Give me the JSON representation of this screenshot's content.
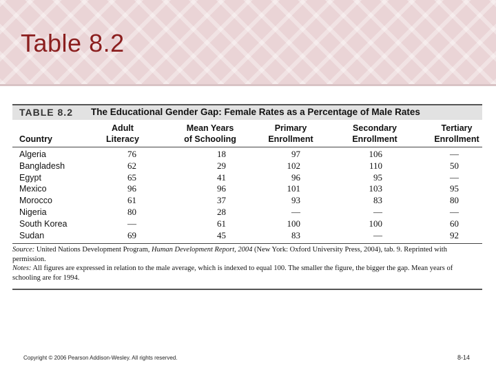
{
  "slide": {
    "title": "Table 8.2",
    "copyright": "Copyright © 2006 Pearson Addison-Wesley. All rights reserved.",
    "page_number": "8-14"
  },
  "table": {
    "number": "TABLE 8.2",
    "caption": "The Educational Gender Gap: Female Rates as a Percentage of Male Rates",
    "headers": {
      "country": "Country",
      "adult_literacy": [
        "Adult",
        "Literacy"
      ],
      "mean_years": [
        "Mean Years",
        "of Schooling"
      ],
      "primary": [
        "Primary",
        "Enrollment"
      ],
      "secondary": [
        "Secondary",
        "Enrollment"
      ],
      "tertiary": [
        "Tertiary",
        "Enrollment"
      ]
    },
    "rows": [
      {
        "country": "Algeria",
        "literacy": "76",
        "mean_years": "18",
        "primary": "97",
        "secondary": "106",
        "tertiary": "—"
      },
      {
        "country": "Bangladesh",
        "literacy": "62",
        "mean_years": "29",
        "primary": "102",
        "secondary": "110",
        "tertiary": "50"
      },
      {
        "country": "Egypt",
        "literacy": "65",
        "mean_years": "41",
        "primary": "96",
        "secondary": "95",
        "tertiary": "—"
      },
      {
        "country": "Mexico",
        "literacy": "96",
        "mean_years": "96",
        "primary": "101",
        "secondary": "103",
        "tertiary": "95"
      },
      {
        "country": "Morocco",
        "literacy": "61",
        "mean_years": "37",
        "primary": "93",
        "secondary": "83",
        "tertiary": "80"
      },
      {
        "country": "Nigeria",
        "literacy": "80",
        "mean_years": "28",
        "primary": "—",
        "secondary": "—",
        "tertiary": "—"
      },
      {
        "country": "South Korea",
        "literacy": "—",
        "mean_years": "61",
        "primary": "100",
        "secondary": "100",
        "tertiary": "60"
      },
      {
        "country": "Sudan",
        "literacy": "69",
        "mean_years": "45",
        "primary": "83",
        "secondary": "—",
        "tertiary": "92"
      }
    ],
    "source_label": "Source:",
    "source_text_1": " United Nations Development Program, ",
    "source_title": "Human Development Report, 2004",
    "source_text_2": " (New York: Oxford University Press, 2004), tab. 9. Reprinted with permission.",
    "notes_label": "Notes:",
    "notes_text": " All figures are expressed in relation to the male average, which is indexed to equal 100. The smaller the figure, the bigger the gap. Mean years of schooling are for 1994."
  }
}
